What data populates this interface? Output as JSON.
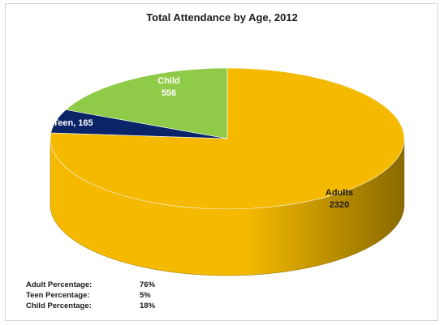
{
  "chart_data": {
    "type": "pie",
    "title": "Total Attendance by Age, 2012",
    "slices": [
      {
        "name": "Adults",
        "value": 2320,
        "label_lines": [
          "Adults",
          "2320"
        ],
        "color": "#F5BA00",
        "dark": "#8A6A00",
        "label_color": "#1a1a1a"
      },
      {
        "name": "Teen",
        "value": 165,
        "label_lines": [
          "Teen, 165"
        ],
        "color": "#0B2468",
        "dark": "#061238",
        "label_color": "#ffffff"
      },
      {
        "name": "Child",
        "value": 556,
        "label_lines": [
          "Child",
          "556"
        ],
        "color": "#8FCB48",
        "dark": "#4E7A20",
        "label_color": "#ffffff"
      }
    ],
    "summary": [
      {
        "label": "Adult Percentage:",
        "value": "76%"
      },
      {
        "label": "Teen Percentage:",
        "value": "5%"
      },
      {
        "label": "Child Percentage:",
        "value": "18%"
      }
    ]
  }
}
